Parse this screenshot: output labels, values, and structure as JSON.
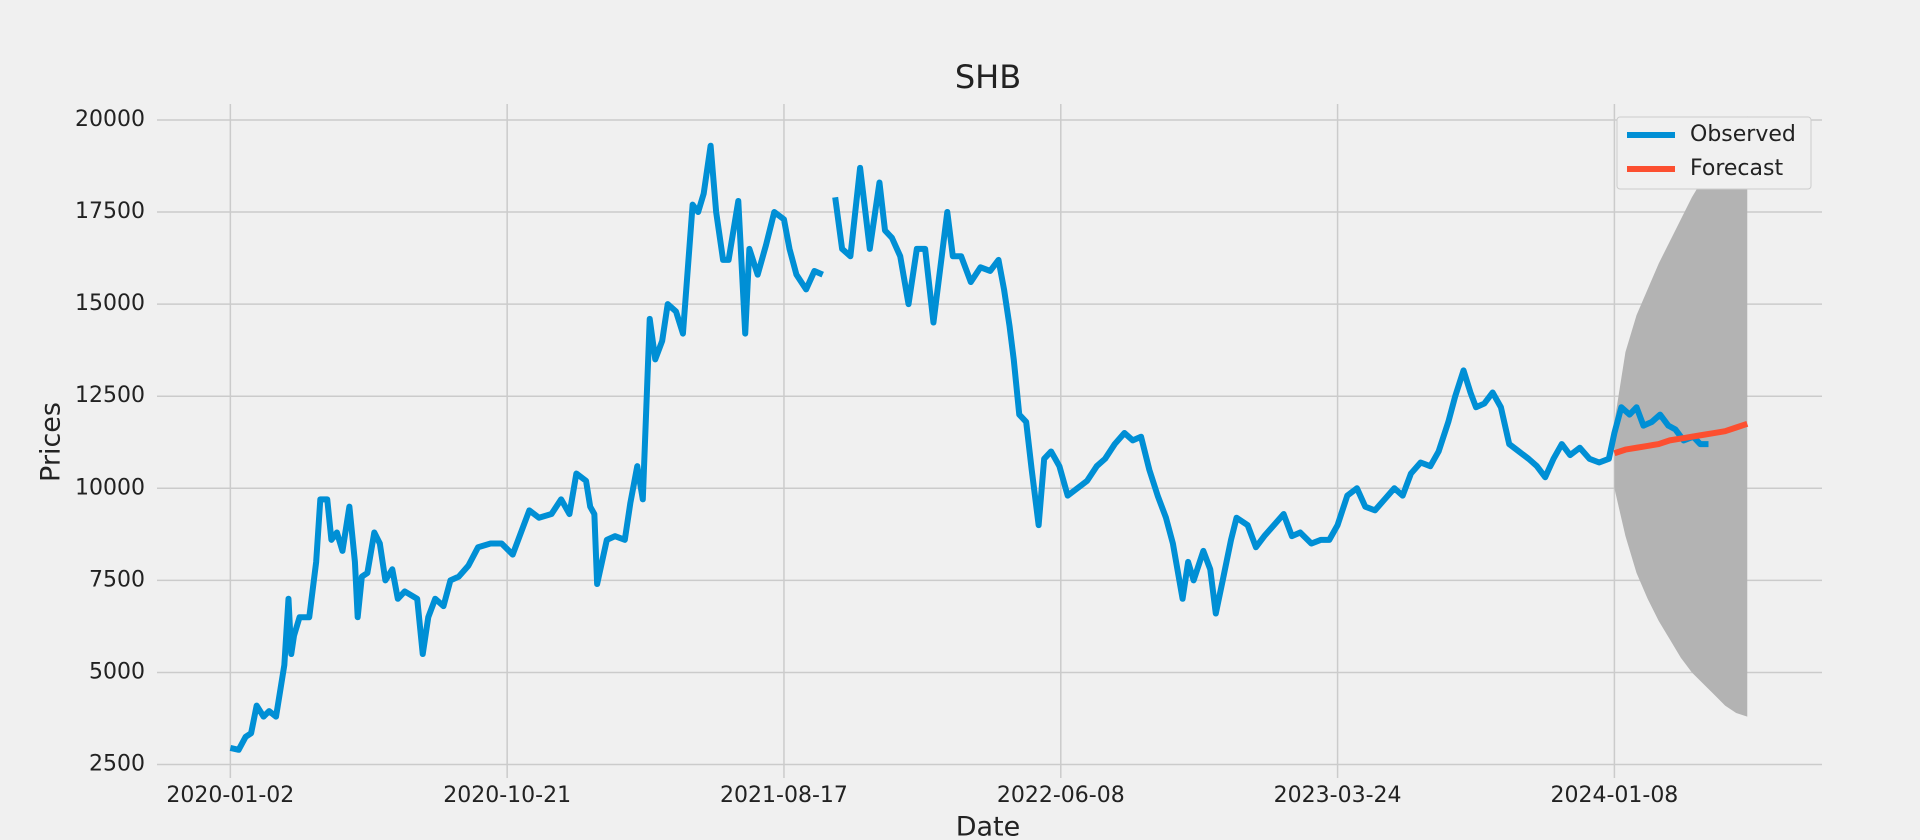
{
  "chart_data": {
    "type": "line",
    "title": "SHB",
    "x_label": "Date",
    "y_label": "Prices",
    "xlim": [
      -53,
      1150
    ],
    "ylim": [
      2134,
      20433
    ],
    "xticks": [
      {
        "value": 0,
        "label": "2020-01-02"
      },
      {
        "value": 200,
        "label": "2020-10-21"
      },
      {
        "value": 400,
        "label": "2021-08-17"
      },
      {
        "value": 600,
        "label": "2022-06-08"
      },
      {
        "value": 800,
        "label": "2023-03-24"
      },
      {
        "value": 1000,
        "label": "2024-01-08"
      }
    ],
    "yticks": [
      2500,
      5000,
      7500,
      10000,
      12500,
      15000,
      17500,
      20000
    ],
    "grid": true,
    "legend": "upper right",
    "band": {
      "color": "#b3b3b3",
      "x": [
        1000,
        1008,
        1016,
        1024,
        1032,
        1040,
        1048,
        1056,
        1064,
        1072,
        1080,
        1088,
        1096
      ],
      "upper": [
        11800,
        13700,
        14700,
        15400,
        16100,
        16700,
        17300,
        17900,
        18400,
        18900,
        19300,
        19700,
        20100
      ],
      "lower": [
        10000,
        8700,
        7700,
        7000,
        6400,
        5900,
        5400,
        5000,
        4700,
        4400,
        4100,
        3900,
        3800
      ]
    },
    "series": [
      {
        "name": "Observed",
        "color": "#008fd5",
        "x": [
          0,
          6,
          11,
          15,
          19,
          24,
          28,
          33,
          39,
          42,
          44,
          46,
          50,
          57,
          62,
          65,
          70,
          73,
          77,
          81,
          86,
          90,
          92,
          95,
          99,
          104,
          108,
          112,
          117,
          121,
          126,
          135,
          139,
          143,
          148,
          154,
          159,
          165,
          172,
          179,
          188,
          196,
          204,
          210,
          216,
          223,
          232,
          239,
          245,
          250,
          257,
          260,
          263,
          265,
          272,
          278,
          285,
          289,
          294,
          298,
          303,
          307,
          312,
          316,
          322,
          327,
          334,
          338,
          342,
          347,
          351,
          356,
          360,
          367,
          372,
          375,
          381,
          387,
          393,
          400,
          404,
          409,
          416,
          422,
          428,
          434,
          437,
          442,
          448,
          455,
          462,
          469,
          473,
          478,
          484,
          490,
          496,
          502,
          508,
          513,
          518,
          522,
          528,
          535,
          542,
          549,
          555,
          559,
          563,
          566,
          570,
          575,
          579,
          584,
          588,
          593,
          599,
          605,
          612,
          619,
          626,
          632,
          639,
          646,
          652,
          658,
          664,
          670,
          676,
          681,
          688,
          692,
          696,
          703,
          708,
          712,
          717,
          723,
          727,
          735,
          741,
          747,
          754,
          761,
          767,
          773,
          781,
          788,
          794,
          800,
          807,
          814,
          820,
          827,
          834,
          841,
          847,
          853,
          860,
          867,
          873,
          880,
          885,
          891,
          896,
          900,
          906,
          912,
          918,
          924,
          931,
          938,
          944,
          950,
          956,
          962,
          968,
          975,
          982,
          989,
          996,
          1000,
          1005,
          1011,
          1016,
          1021,
          1027,
          1033,
          1039,
          1044,
          1050,
          1057,
          1062,
          1068
        ],
        "values": [
          2950,
          2900,
          3250,
          3350,
          4100,
          3800,
          3950,
          3800,
          5200,
          7000,
          5500,
          6000,
          6500,
          6500,
          8000,
          9700,
          9700,
          8600,
          8800,
          8300,
          9500,
          8000,
          6500,
          7600,
          7700,
          8800,
          8500,
          7500,
          7800,
          7000,
          7200,
          7000,
          5500,
          6500,
          7000,
          6800,
          7500,
          7600,
          7900,
          8400,
          8500,
          8500,
          8200,
          8800,
          9400,
          9200,
          9300,
          9700,
          9300,
          10400,
          10200,
          9500,
          9300,
          7400,
          8600,
          8700,
          8600,
          9600,
          10600,
          9700,
          14600,
          13500,
          14000,
          15000,
          14800,
          14200,
          17700,
          17500,
          18000,
          19300,
          17500,
          16200,
          16200,
          17800,
          14200,
          16500,
          15800,
          16600,
          17500,
          17300,
          16500,
          15800,
          15400,
          15900,
          15800,
          null,
          17900,
          16500,
          16300,
          18700,
          16500,
          18300,
          17000,
          16800,
          16300,
          15000,
          16500,
          16500,
          14500,
          16000,
          17500,
          16300,
          16300,
          15600,
          16000,
          15900,
          16200,
          15400,
          14400,
          13500,
          12000,
          11800,
          10500,
          9000,
          10800,
          11000,
          10600,
          9800,
          10000,
          10200,
          10600,
          10800,
          11200,
          11500,
          11300,
          11400,
          10500,
          9800,
          9200,
          8500,
          7000,
          8000,
          7500,
          8300,
          7800,
          6600,
          7500,
          8600,
          9200,
          9000,
          8400,
          8700,
          9000,
          9300,
          8700,
          8800,
          8500,
          8600,
          8600,
          9000,
          9800,
          10000,
          9500,
          9400,
          9700,
          10000,
          9800,
          10400,
          10700,
          10600,
          11000,
          11800,
          12500,
          13200,
          12600,
          12200,
          12300,
          12600,
          12200,
          11200,
          11000,
          10800,
          10600,
          10300,
          10800,
          11200,
          10900,
          11100,
          10800,
          10700,
          10800,
          11500,
          12200,
          12000,
          12200,
          11700,
          11800,
          12000,
          11700,
          11600,
          11300,
          11400,
          11200,
          11200
        ]
      },
      {
        "name": "Forecast",
        "color": "#fc4f30",
        "x": [
          1000,
          1008,
          1016,
          1024,
          1032,
          1040,
          1048,
          1056,
          1064,
          1072,
          1080,
          1088,
          1096
        ],
        "values": [
          10950,
          11050,
          11100,
          11150,
          11200,
          11300,
          11350,
          11400,
          11450,
          11500,
          11550,
          11650,
          11750
        ]
      }
    ]
  }
}
